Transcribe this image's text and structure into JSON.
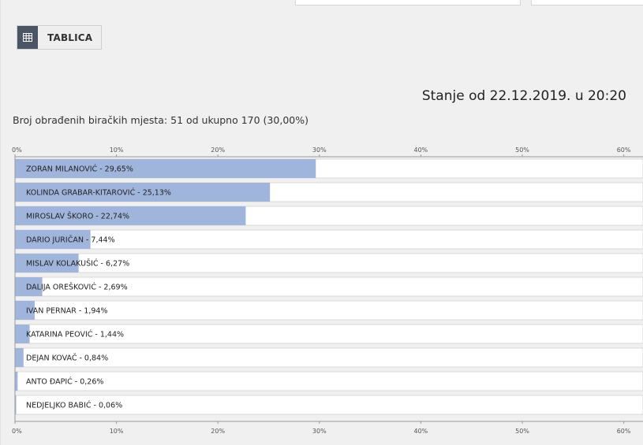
{
  "tab": {
    "label": "TABLICA",
    "icon": "table-icon"
  },
  "timestamp": "Stanje od 22.12.2019. u 20:20",
  "count_line": "Broj obrađenih biračkih mjesta: 51 od ukupno 170 (30,00%)",
  "colors": {
    "bar": "#9fb5dc",
    "track": "#ffffff",
    "track_border": "#d8d8d8",
    "axis": "#999999",
    "tab_icon_bg": "#4a5566"
  },
  "chart_data": {
    "type": "bar",
    "orientation": "horizontal",
    "xlim": [
      0,
      60
    ],
    "ticks": [
      "0%",
      "10%",
      "20%",
      "30%",
      "40%",
      "50%",
      "60%"
    ],
    "tick_values": [
      0,
      10,
      20,
      30,
      40,
      50,
      60
    ],
    "categories": [
      "ZORAN MILANOVIĆ - 29,65%",
      "KOLINDA GRABAR-KITAROVIĆ - 25,13%",
      "MIROSLAV ŠKORO - 22,74%",
      "DARIO JURIČAN - 7,44%",
      "MISLAV KOLAKUŠIĆ - 6,27%",
      "DALIJA OREŠKOVIĆ - 2,69%",
      "IVAN PERNAR - 1,94%",
      "KATARINA PEOVIĆ - 1,44%",
      "DEJAN KOVAČ - 0,84%",
      "ANTO ĐAPIĆ - 0,26%",
      "NEDJELJKO BABIĆ - 0,06%"
    ],
    "values": [
      29.65,
      25.13,
      22.74,
      7.44,
      6.27,
      2.69,
      1.94,
      1.44,
      0.84,
      0.26,
      0.06
    ]
  }
}
